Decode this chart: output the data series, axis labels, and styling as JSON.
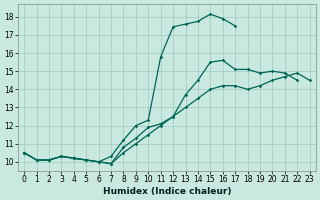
{
  "background_color": "#c8e8e0",
  "grid_color": "#a0c8c0",
  "line_color": "#006655",
  "xlabel": "Humidex (Indice chaleur)",
  "xlim": [
    -0.5,
    23.5
  ],
  "ylim": [
    9.5,
    18.7
  ],
  "xticks": [
    0,
    1,
    2,
    3,
    4,
    5,
    6,
    7,
    8,
    9,
    10,
    11,
    12,
    13,
    14,
    15,
    16,
    17,
    18,
    19,
    20,
    21,
    22,
    23
  ],
  "yticks": [
    10,
    11,
    12,
    13,
    14,
    15,
    16,
    17,
    18
  ],
  "line1_x": [
    0,
    1,
    2,
    3,
    4,
    5,
    6,
    7,
    8,
    9,
    10,
    11,
    12,
    13,
    14,
    15,
    16,
    17,
    18,
    19,
    20,
    21,
    22,
    23
  ],
  "line1_y": [
    10.5,
    10.1,
    10.1,
    10.3,
    10.2,
    10.1,
    10.0,
    10.3,
    11.2,
    12.0,
    12.3,
    15.8,
    17.45,
    17.6,
    17.75,
    18.15,
    17.9,
    17.5,
    null,
    null,
    null,
    null,
    null,
    null
  ],
  "line2_x": [
    0,
    1,
    2,
    3,
    4,
    5,
    6,
    7,
    8,
    9,
    10,
    11,
    12,
    13,
    14,
    15,
    16,
    17,
    18,
    19,
    20,
    21,
    22,
    23
  ],
  "line2_y": [
    10.5,
    10.1,
    10.1,
    10.3,
    10.2,
    10.1,
    10.0,
    9.9,
    10.8,
    11.3,
    11.9,
    12.1,
    12.5,
    13.7,
    14.5,
    15.5,
    15.6,
    15.1,
    15.1,
    14.9,
    15.0,
    14.9,
    14.5,
    null
  ],
  "line3_x": [
    0,
    1,
    2,
    3,
    4,
    5,
    6,
    7,
    8,
    9,
    10,
    11,
    12,
    13,
    14,
    15,
    16,
    17,
    18,
    19,
    20,
    21,
    22,
    23
  ],
  "line3_y": [
    10.5,
    10.1,
    10.1,
    10.3,
    10.2,
    10.1,
    10.0,
    9.9,
    10.5,
    11.0,
    11.5,
    12.0,
    12.5,
    13.0,
    13.5,
    14.0,
    14.2,
    14.2,
    14.0,
    14.2,
    14.5,
    14.7,
    14.9,
    14.5
  ]
}
